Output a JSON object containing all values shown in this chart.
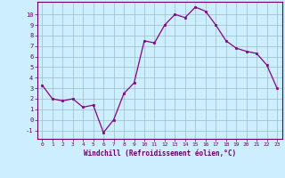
{
  "x": [
    0,
    1,
    2,
    3,
    4,
    5,
    6,
    7,
    8,
    9,
    10,
    11,
    12,
    13,
    14,
    15,
    16,
    17,
    18,
    19,
    20,
    21,
    22,
    23
  ],
  "y": [
    3.3,
    2.0,
    1.8,
    2.0,
    1.2,
    1.4,
    -1.2,
    0.0,
    2.5,
    3.5,
    7.5,
    7.3,
    9.0,
    10.0,
    9.7,
    10.7,
    10.3,
    9.0,
    7.5,
    6.8,
    6.5,
    6.3,
    5.2,
    3.0
  ],
  "line_color": "#880088",
  "marker": "s",
  "marker_size": 2.0,
  "bg_color": "#cceeff",
  "grid_color": "#99bbcc",
  "xlabel": "Windchill (Refroidissement éolien,°C)",
  "xlabel_color": "#660066",
  "tick_color": "#660066",
  "xlim": [
    -0.5,
    23.5
  ],
  "ylim": [
    -1.8,
    11.2
  ],
  "yticks": [
    -1,
    0,
    1,
    2,
    3,
    4,
    5,
    6,
    7,
    8,
    9,
    10
  ],
  "xticks": [
    0,
    1,
    2,
    3,
    4,
    5,
    6,
    7,
    8,
    9,
    10,
    11,
    12,
    13,
    14,
    15,
    16,
    17,
    18,
    19,
    20,
    21,
    22,
    23
  ]
}
